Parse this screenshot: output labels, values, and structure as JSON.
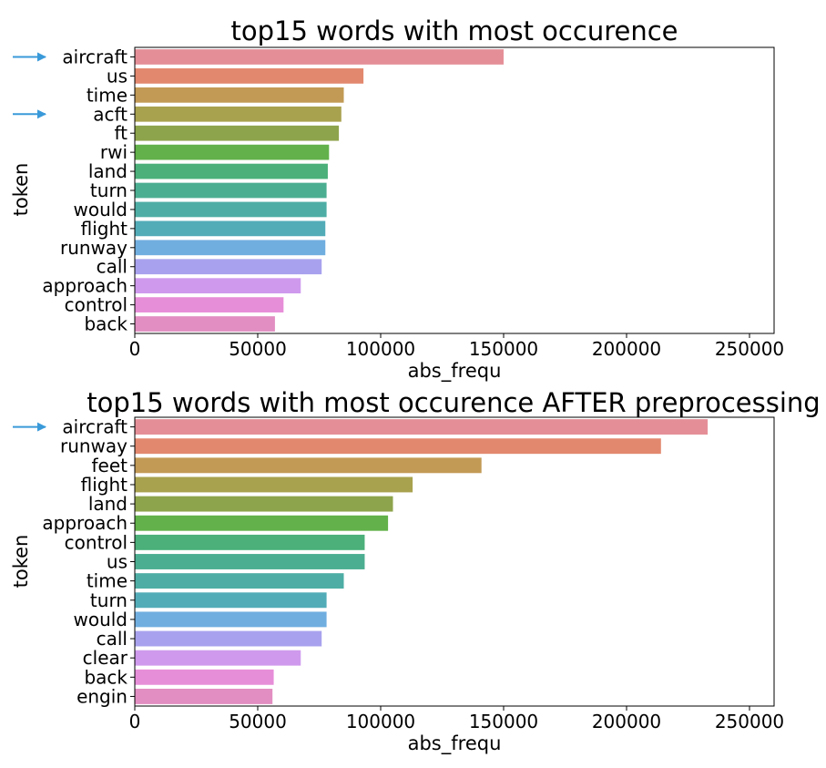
{
  "colors": {
    "palette": [
      "#e48f98",
      "#e2886e",
      "#c29a55",
      "#a8a24f",
      "#8ea44c",
      "#62b14a",
      "#4bb07a",
      "#4cae91",
      "#4eaea5",
      "#52acb8",
      "#70aee0",
      "#a8a2ee",
      "#cf9aee",
      "#e78ed8",
      "#e28ec2"
    ],
    "arrow": "#3a9ad9",
    "frame": "#000000"
  },
  "chart_data": [
    {
      "type": "bar",
      "orientation": "horizontal",
      "title": "top15 words with most occurence",
      "xlabel": "abs_frequ",
      "ylabel": "token",
      "xlim": [
        0,
        260000
      ],
      "xticks": [
        0,
        50000,
        100000,
        150000,
        200000,
        250000
      ],
      "xtick_labels": [
        "0",
        "50000",
        "100000",
        "150000",
        "200000",
        "250000"
      ],
      "grid": false,
      "categories": [
        "aircraft",
        "us",
        "time",
        "acft",
        "ft",
        "rwi",
        "land",
        "turn",
        "would",
        "flight",
        "runway",
        "call",
        "approach",
        "control",
        "back"
      ],
      "values": [
        150000,
        93000,
        85000,
        84000,
        83000,
        79000,
        78500,
        78000,
        78000,
        77500,
        77500,
        76000,
        67500,
        60500,
        57000
      ],
      "highlighted_categories": [
        "aircraft",
        "acft"
      ],
      "highlight_marker": "right-arrow-icon"
    },
    {
      "type": "bar",
      "orientation": "horizontal",
      "title": "top15 words with most occurence AFTER preprocessing",
      "xlabel": "abs_frequ",
      "ylabel": "token",
      "xlim": [
        0,
        260000
      ],
      "xticks": [
        0,
        50000,
        100000,
        150000,
        200000,
        250000
      ],
      "xtick_labels": [
        "0",
        "50000",
        "100000",
        "150000",
        "200000",
        "250000"
      ],
      "grid": false,
      "categories": [
        "aircraft",
        "runway",
        "feet",
        "flight",
        "land",
        "approach",
        "control",
        "us",
        "time",
        "turn",
        "would",
        "call",
        "clear",
        "back",
        "engin"
      ],
      "values": [
        233000,
        214000,
        141000,
        113000,
        105000,
        103000,
        93500,
        93500,
        85000,
        78000,
        78000,
        76000,
        67500,
        56500,
        56000
      ],
      "highlighted_categories": [
        "aircraft"
      ],
      "highlight_marker": "right-arrow-icon"
    }
  ]
}
